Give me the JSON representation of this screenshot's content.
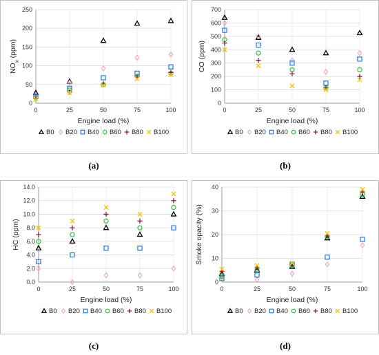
{
  "chart_data": [
    {
      "type": "scatter",
      "caption": "(a)",
      "xlabel": "Engine load (%)",
      "ylabel": "NOx (ppm)",
      "ylabel_main": "NO",
      "ylabel_sub": "x",
      "ylabel_unit": " (ppm)",
      "x": [
        0,
        25,
        50,
        75,
        100
      ],
      "xlim": [
        0,
        100
      ],
      "ylim": [
        0,
        250
      ],
      "yticks": [
        0,
        50,
        100,
        150,
        200,
        250
      ],
      "xticks": [
        0,
        25,
        50,
        75,
        100
      ],
      "grid": true,
      "legend_position": "bottom",
      "series": [
        {
          "name": "B0",
          "values": [
            28,
            58,
            167,
            213,
            220
          ]
        },
        {
          "name": "B20",
          "values": [
            22,
            55,
            93,
            122,
            130
          ]
        },
        {
          "name": "B40",
          "values": [
            18,
            40,
            68,
            80,
            97
          ]
        },
        {
          "name": "B60",
          "values": [
            15,
            35,
            50,
            72,
            80
          ]
        },
        {
          "name": "B80",
          "values": [
            14,
            30,
            52,
            70,
            82
          ]
        },
        {
          "name": "B100",
          "values": [
            10,
            28,
            48,
            65,
            75
          ]
        }
      ]
    },
    {
      "type": "scatter",
      "caption": "(b)",
      "xlabel": "Engine load (%)",
      "ylabel": "CO (ppm)",
      "x": [
        0,
        25,
        50,
        75,
        100
      ],
      "xlim": [
        0,
        100
      ],
      "ylim": [
        0,
        700
      ],
      "yticks": [
        0,
        100,
        200,
        300,
        400,
        500,
        600,
        700
      ],
      "xticks": [
        0,
        25,
        50,
        75,
        100
      ],
      "grid": true,
      "legend_position": "bottom",
      "series": [
        {
          "name": "B0",
          "values": [
            640,
            490,
            400,
            375,
            525
          ]
        },
        {
          "name": "B20",
          "values": [
            600,
            500,
            320,
            235,
            375
          ]
        },
        {
          "name": "B40",
          "values": [
            545,
            435,
            300,
            150,
            330
          ]
        },
        {
          "name": "B60",
          "values": [
            475,
            375,
            250,
            115,
            250
          ]
        },
        {
          "name": "B80",
          "values": [
            450,
            320,
            220,
            115,
            200
          ]
        },
        {
          "name": "B100",
          "values": [
            400,
            280,
            130,
            100,
            175
          ]
        }
      ]
    },
    {
      "type": "scatter",
      "caption": "(c)",
      "xlabel": "Engine load (%)",
      "ylabel": "HC (ppm)",
      "x": [
        0,
        25,
        50,
        75,
        100
      ],
      "xlim": [
        0,
        100
      ],
      "ylim": [
        0,
        14
      ],
      "yticks": [
        0,
        2,
        4,
        6,
        8,
        10,
        12,
        14
      ],
      "ytick_labels": [
        "0.0",
        "2.0",
        "4.0",
        "6.0",
        "8.0",
        "10.0",
        "12.0",
        "14.0"
      ],
      "xticks": [
        0,
        25,
        50,
        75,
        100
      ],
      "grid": true,
      "legend_position": "bottom",
      "series": [
        {
          "name": "B0",
          "values": [
            5,
            6,
            8,
            7,
            10
          ]
        },
        {
          "name": "B20",
          "values": [
            2,
            0,
            1,
            1,
            2
          ]
        },
        {
          "name": "B40",
          "values": [
            3,
            4,
            5,
            5,
            8
          ]
        },
        {
          "name": "B60",
          "values": [
            6,
            7,
            9,
            8,
            11
          ]
        },
        {
          "name": "B80",
          "values": [
            7,
            8,
            10,
            9,
            12
          ]
        },
        {
          "name": "B100",
          "values": [
            8,
            9,
            11,
            10,
            13
          ]
        }
      ]
    },
    {
      "type": "scatter",
      "caption": "(d)",
      "xlabel": "Engine load (%)",
      "ylabel": "Smoke opacity (%)",
      "x": [
        0,
        25,
        50,
        75,
        100
      ],
      "xlim": [
        0,
        100
      ],
      "ylim": [
        0,
        40
      ],
      "yticks": [
        0,
        10,
        20,
        30,
        40
      ],
      "xticks": [
        0,
        25,
        50,
        75,
        100
      ],
      "grid": true,
      "legend_position": "bottom",
      "series": [
        {
          "name": "B0",
          "values": [
            3.5,
            5.0,
            6.5,
            18.5,
            36.0
          ]
        },
        {
          "name": "B20",
          "values": [
            2.0,
            1.0,
            3.5,
            7.5,
            15.5
          ]
        },
        {
          "name": "B40",
          "values": [
            1.5,
            3.0,
            7.5,
            10.5,
            18.0
          ]
        },
        {
          "name": "B60",
          "values": [
            2.5,
            5.0,
            7.0,
            19.0,
            37.0
          ]
        },
        {
          "name": "B80",
          "values": [
            4.5,
            6.0,
            7.5,
            19.5,
            38.0
          ]
        },
        {
          "name": "B100",
          "values": [
            5.5,
            7.0,
            8.0,
            20.5,
            39.0
          ]
        }
      ]
    }
  ],
  "series_colors": {
    "B0": "#000000",
    "B20": "#e8a0b0",
    "B40": "#1f77d4",
    "B60": "#2fbf3a",
    "B80": "#8b1a3a",
    "B100": "#f2c40f"
  },
  "series_markers": {
    "B0": "triangle",
    "B20": "diamond",
    "B40": "square",
    "B60": "circle",
    "B80": "plus",
    "B100": "cross"
  }
}
